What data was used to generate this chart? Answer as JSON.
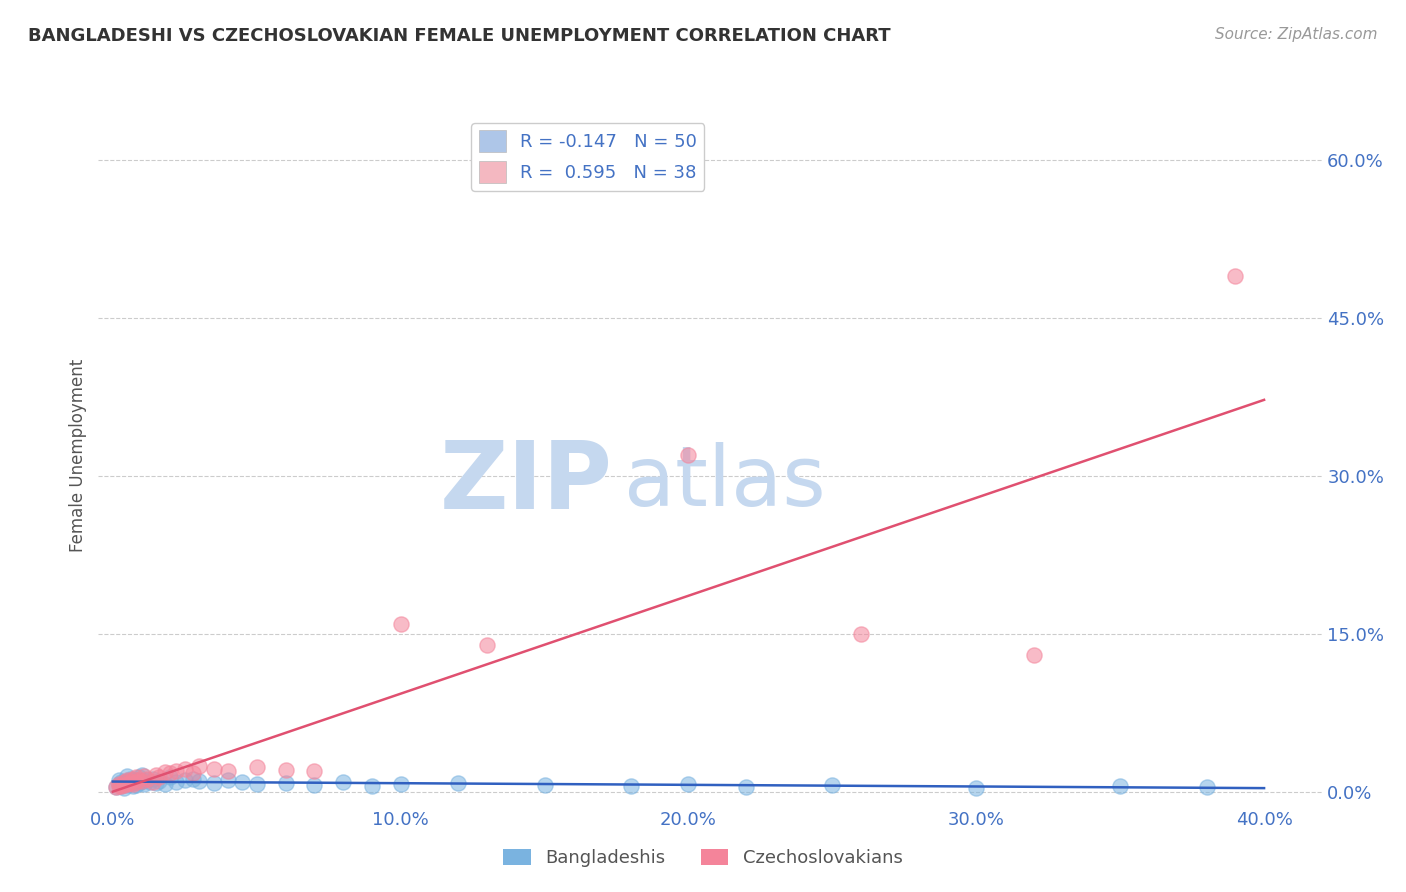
{
  "title": "BANGLADESHI VS CZECHOSLOVAKIAN FEMALE UNEMPLOYMENT CORRELATION CHART",
  "source": "Source: ZipAtlas.com",
  "ylabel": "Female Unemployment",
  "xlabel_ticks": [
    "0.0%",
    "10.0%",
    "20.0%",
    "30.0%",
    "40.0%"
  ],
  "xlabel_vals": [
    0.0,
    0.1,
    0.2,
    0.3,
    0.4
  ],
  "ylabel_ticks_right": [
    "0.0%",
    "15.0%",
    "30.0%",
    "45.0%",
    "60.0%"
  ],
  "ylabel_vals_right": [
    0.0,
    0.15,
    0.3,
    0.45,
    0.6
  ],
  "xlim": [
    -0.005,
    0.42
  ],
  "ylim": [
    -0.01,
    0.65
  ],
  "legend_entries": [
    {
      "label": "R = -0.147   N = 50",
      "facecolor": "#aec6e8"
    },
    {
      "label": "R =  0.595   N = 38",
      "facecolor": "#f4b8c1"
    }
  ],
  "legend_labels_bottom": [
    "Bangladeshis",
    "Czechoslovakians"
  ],
  "bangladeshi_color": "#7ab3e0",
  "czechoslovakian_color": "#f4849a",
  "trend_bangladeshi_color": "#3060c0",
  "trend_czechoslovakian_color": "#e05070",
  "watermark_zip_color": "#c8d8ee",
  "watermark_atlas_color": "#c8d8ee",
  "background_color": "#ffffff",
  "grid_color": "#cccccc",
  "title_color": "#333333",
  "axis_label_color": "#555555",
  "tick_color": "#4472c4",
  "source_color": "#999999",
  "bangladeshi_x": [
    0.001,
    0.002,
    0.002,
    0.003,
    0.003,
    0.004,
    0.004,
    0.005,
    0.005,
    0.005,
    0.006,
    0.006,
    0.007,
    0.007,
    0.008,
    0.008,
    0.009,
    0.009,
    0.01,
    0.01,
    0.011,
    0.012,
    0.013,
    0.014,
    0.015,
    0.016,
    0.018,
    0.02,
    0.022,
    0.025,
    0.028,
    0.03,
    0.035,
    0.04,
    0.045,
    0.05,
    0.06,
    0.07,
    0.08,
    0.09,
    0.1,
    0.12,
    0.15,
    0.18,
    0.2,
    0.22,
    0.25,
    0.3,
    0.35,
    0.38
  ],
  "bangladeshi_y": [
    0.005,
    0.008,
    0.012,
    0.006,
    0.01,
    0.004,
    0.009,
    0.007,
    0.011,
    0.015,
    0.008,
    0.013,
    0.006,
    0.01,
    0.012,
    0.007,
    0.009,
    0.014,
    0.011,
    0.016,
    0.008,
    0.012,
    0.01,
    0.013,
    0.009,
    0.011,
    0.008,
    0.014,
    0.01,
    0.012,
    0.013,
    0.011,
    0.009,
    0.012,
    0.01,
    0.008,
    0.009,
    0.007,
    0.01,
    0.006,
    0.008,
    0.009,
    0.007,
    0.006,
    0.008,
    0.005,
    0.007,
    0.004,
    0.006,
    0.005
  ],
  "czechoslovakian_x": [
    0.001,
    0.002,
    0.002,
    0.003,
    0.004,
    0.004,
    0.005,
    0.005,
    0.006,
    0.006,
    0.007,
    0.007,
    0.008,
    0.008,
    0.009,
    0.01,
    0.011,
    0.012,
    0.014,
    0.015,
    0.016,
    0.018,
    0.02,
    0.022,
    0.025,
    0.028,
    0.03,
    0.035,
    0.04,
    0.05,
    0.06,
    0.07,
    0.1,
    0.13,
    0.2,
    0.26,
    0.32,
    0.39
  ],
  "czechoslovakian_y": [
    0.005,
    0.006,
    0.008,
    0.006,
    0.007,
    0.01,
    0.008,
    0.012,
    0.009,
    0.011,
    0.013,
    0.008,
    0.01,
    0.014,
    0.012,
    0.011,
    0.015,
    0.013,
    0.01,
    0.016,
    0.014,
    0.019,
    0.018,
    0.02,
    0.022,
    0.018,
    0.025,
    0.022,
    0.02,
    0.024,
    0.021,
    0.02,
    0.16,
    0.14,
    0.32,
    0.15,
    0.13,
    0.49
  ]
}
